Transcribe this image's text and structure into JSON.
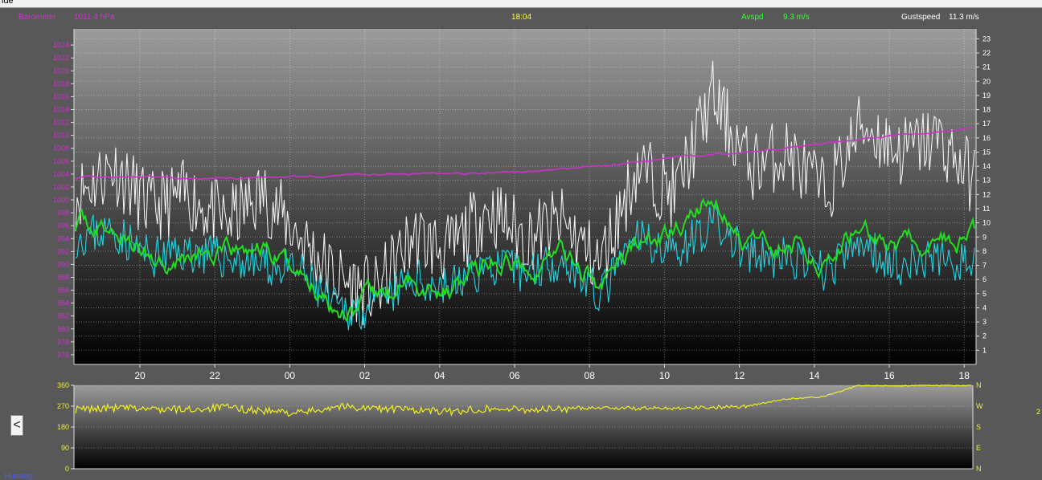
{
  "window": {
    "title_fragment": "ide"
  },
  "header": {
    "barometer_label": "Barometer",
    "barometer_value": "1011.4 hPa",
    "time": "18:04",
    "avspd_label": "Avspd",
    "avspd_value": "9.3 m/s",
    "gustspeed_label": "Gustspeed",
    "gustspeed_value": "11.3 m/s"
  },
  "footer": {
    "humidity_label": "Humidity",
    "right_edge_label": "2"
  },
  "nav": {
    "back_icon": "chevron-left-icon",
    "back_glyph": "<"
  },
  "colors": {
    "barometer": "#cc33cc",
    "avspd": "#22dd22",
    "gust": "#f0f0f0",
    "wind_lull": "#22d4e0",
    "direction": "#f0f020",
    "avspd_text": "#33ff33",
    "time_text": "#ffff40",
    "humidity_text": "#4a5cff"
  },
  "chart_data": [
    {
      "type": "line",
      "time_axis_hours_elapsed": [
        0,
        1,
        2,
        3,
        4,
        5,
        6,
        7,
        8,
        9,
        10,
        11,
        12,
        13,
        14,
        15,
        16,
        17,
        18,
        19,
        20,
        21,
        22,
        23,
        24
      ],
      "x_tick_labels": [
        "20",
        "22",
        "00",
        "02",
        "04",
        "06",
        "08",
        "10",
        "12",
        "14",
        "16",
        "18"
      ],
      "y_left_ticks": [
        976,
        978,
        980,
        982,
        984,
        986,
        988,
        990,
        992,
        994,
        996,
        998,
        1000,
        1002,
        1004,
        1006,
        1008,
        1010,
        1012,
        1014,
        1016,
        1018,
        1020,
        1022,
        1024
      ],
      "y_left_range": [
        974.5,
        1026.5
      ],
      "y_right_ticks": [
        1,
        2,
        3,
        4,
        5,
        6,
        7,
        8,
        9,
        10,
        11,
        12,
        13,
        14,
        15,
        16,
        17,
        18,
        19,
        20,
        21,
        22,
        23
      ],
      "y_right_range": [
        0,
        23.7
      ],
      "grid": true,
      "series": [
        {
          "key": "barometer",
          "axis": "left",
          "values": [
            1003.4,
            1003.6,
            1003.5,
            1003.3,
            1003.4,
            1003.5,
            1003.7,
            1003.8,
            1003.9,
            1004.0,
            1004.1,
            1004.2,
            1004.3,
            1004.8,
            1005.2,
            1005.9,
            1006.6,
            1007.0,
            1007.5,
            1008.1,
            1008.8,
            1009.5,
            1010.1,
            1010.6,
            1011.2
          ]
        },
        {
          "key": "avspd",
          "axis": "right",
          "values": [
            10,
            9.5,
            7.5,
            8,
            7.5,
            8,
            6.5,
            4.2,
            4.5,
            6,
            5.5,
            7,
            7,
            8,
            5.5,
            8.5,
            9,
            12,
            8,
            9,
            7.5,
            10,
            8,
            8.5,
            9
          ]
        },
        {
          "key": "gust",
          "axis": "right",
          "values": [
            12,
            14,
            11,
            12,
            10,
            12,
            9,
            6,
            5,
            9,
            8,
            11,
            9,
            10,
            7,
            14,
            12,
            19,
            14,
            15,
            12,
            17,
            15,
            16,
            13
          ]
        },
        {
          "key": "wind_lull",
          "axis": "right",
          "values": [
            9,
            9.5,
            7.5,
            8,
            7.5,
            7,
            6.5,
            3.8,
            4,
            6,
            5.5,
            7,
            6.5,
            7.5,
            4.8,
            9,
            8,
            10,
            7.5,
            7.5,
            6.5,
            8.5,
            7,
            7.5,
            7
          ]
        }
      ]
    },
    {
      "type": "line",
      "time_axis_hours_elapsed": [
        0,
        1,
        2,
        3,
        4,
        5,
        6,
        7,
        8,
        9,
        10,
        11,
        12,
        13,
        14,
        15,
        16,
        17,
        18,
        19,
        20,
        21,
        22,
        23,
        24
      ],
      "y_left_ticks": [
        0,
        90,
        180,
        270,
        360
      ],
      "y_left_range": [
        0,
        360
      ],
      "y_right_labels": [
        "N",
        "W",
        "S",
        "E",
        "N"
      ],
      "series": [
        {
          "key": "direction",
          "values": [
            255,
            262,
            258,
            255,
            265,
            250,
            240,
            270,
            260,
            255,
            245,
            260,
            255,
            258,
            265,
            260,
            262,
            265,
            270,
            300,
            310,
            360,
            358,
            360,
            360
          ]
        }
      ]
    }
  ]
}
